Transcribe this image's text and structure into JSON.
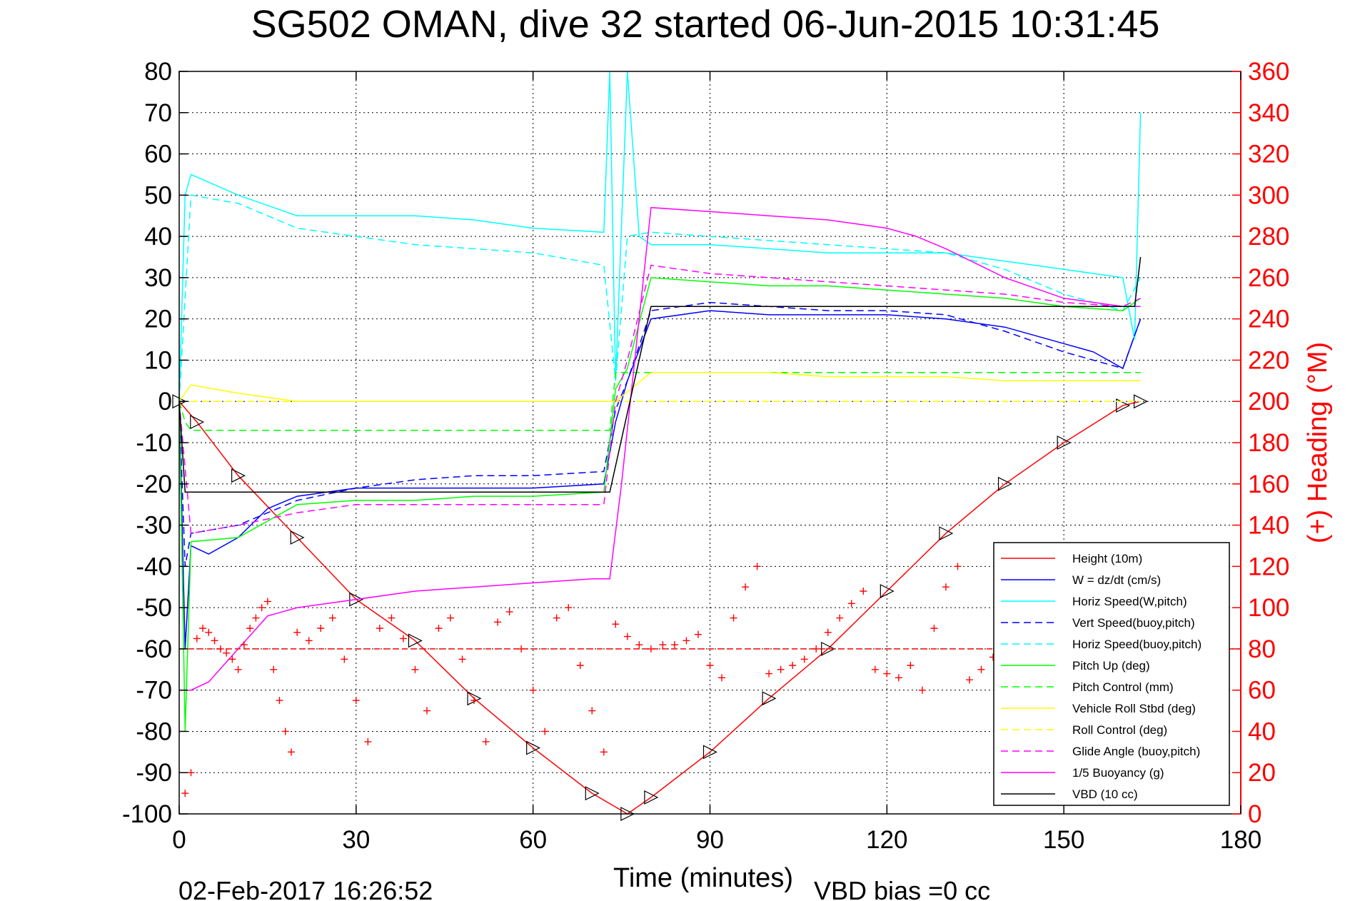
{
  "chart_data": {
    "type": "line",
    "title": "SG502 OMAN, dive 32 started 06-Jun-2015 10:31:45",
    "xlabel": "Time (minutes)",
    "ylabel": "",
    "y2label": "(+) Heading (°M)",
    "xlim": [
      0,
      180
    ],
    "ylim": [
      -100,
      80
    ],
    "y2lim": [
      0,
      360
    ],
    "grid": true,
    "legend_position": "bottom-right",
    "x_ticks": [
      "0",
      "30",
      "60",
      "90",
      "120",
      "150",
      "180"
    ],
    "y_ticks": [
      "80",
      "70",
      "60",
      "50",
      "40",
      "30",
      "20",
      "10",
      "0",
      "-10",
      "-20",
      "-30",
      "-40",
      "-50",
      "-60",
      "-70",
      "-80",
      "-90",
      "-100"
    ],
    "y2_ticks": [
      "360",
      "340",
      "320",
      "300",
      "280",
      "260",
      "240",
      "220",
      "200",
      "180",
      "160",
      "140",
      "120",
      "100",
      "80",
      "60",
      "40",
      "20",
      "0"
    ],
    "footer_date": "02-Feb-2017 16:26:52",
    "footer_vbd": "VBD bias =0 cc",
    "series": [
      {
        "name": "Height (10m)",
        "color": "#ff0000",
        "dash": "solid",
        "marker": "triangle",
        "x": [
          0,
          3,
          10,
          20,
          30,
          40,
          50,
          60,
          70,
          76,
          80,
          90,
          100,
          110,
          120,
          130,
          140,
          150,
          160,
          163
        ],
        "y": [
          0,
          -5,
          -18,
          -33,
          -48,
          -58,
          -72,
          -84,
          -95,
          -100,
          -96,
          -85,
          -72,
          -60,
          -46,
          -32,
          -20,
          -10,
          -1,
          0
        ]
      },
      {
        "name": "W = dz/dt (cm/s)",
        "color": "#0000ff",
        "dash": "solid",
        "x": [
          0,
          1,
          2,
          5,
          10,
          15,
          20,
          30,
          40,
          50,
          60,
          72,
          74,
          76,
          80,
          90,
          100,
          110,
          120,
          130,
          140,
          150,
          155,
          160,
          163
        ],
        "y": [
          0,
          -60,
          -35,
          -37,
          -33,
          -26,
          -23,
          -21,
          -21,
          -21,
          -21,
          -20,
          -5,
          5,
          20,
          22,
          21,
          21,
          21,
          20,
          18,
          14,
          12,
          8,
          20
        ]
      },
      {
        "name": "Horiz Speed(W,pitch)",
        "color": "#00ffff",
        "dash": "solid",
        "x": [
          0,
          1,
          2,
          10,
          20,
          30,
          40,
          50,
          60,
          72,
          73,
          74,
          76,
          78,
          80,
          90,
          100,
          110,
          120,
          130,
          140,
          150,
          160,
          162,
          163
        ],
        "y": [
          0,
          50,
          55,
          50,
          45,
          45,
          45,
          44,
          42,
          41,
          80,
          5,
          80,
          40,
          38,
          38,
          37,
          36,
          36,
          36,
          34,
          32,
          30,
          15,
          70
        ]
      },
      {
        "name": "Vert Speed(buoy,pitch)",
        "color": "#0000ff",
        "dash": "dashed",
        "x": [
          0,
          1,
          2,
          10,
          20,
          30,
          40,
          50,
          60,
          72,
          74,
          76,
          80,
          90,
          100,
          110,
          120,
          130,
          140,
          150,
          160,
          163
        ],
        "y": [
          0,
          -40,
          -32,
          -30,
          -24,
          -21,
          -19,
          -18,
          -18,
          -17,
          -2,
          5,
          22,
          24,
          23,
          22,
          22,
          21,
          17,
          12,
          8,
          20
        ]
      },
      {
        "name": "Horiz Speed(buoy,pitch)",
        "color": "#00ffff",
        "dash": "dashed",
        "x": [
          0,
          2,
          10,
          20,
          30,
          40,
          50,
          60,
          72,
          74,
          76,
          80,
          90,
          100,
          110,
          120,
          130,
          140,
          150,
          160,
          163
        ],
        "y": [
          0,
          50,
          48,
          42,
          40,
          38,
          37,
          36,
          33,
          5,
          40,
          41,
          40,
          39,
          38,
          37,
          36,
          32,
          26,
          22,
          30
        ]
      },
      {
        "name": "Pitch Up (deg)",
        "color": "#00ff00",
        "dash": "solid",
        "x": [
          0,
          1,
          2,
          10,
          20,
          30,
          40,
          50,
          60,
          72,
          74,
          76,
          80,
          90,
          100,
          110,
          120,
          130,
          140,
          150,
          160,
          163
        ],
        "y": [
          0,
          -80,
          -34,
          -33,
          -25,
          -24,
          -24,
          -23,
          -23,
          -22,
          3,
          8,
          30,
          29,
          28,
          28,
          27,
          26,
          25,
          23,
          22,
          25
        ]
      },
      {
        "name": "Pitch Control (mm)",
        "color": "#00ff00",
        "dash": "dashed",
        "x": [
          0,
          1,
          2,
          73,
          74,
          163
        ],
        "y": [
          0,
          -5,
          -7,
          -7,
          7,
          7
        ]
      },
      {
        "name": "Vehicle Roll Stbd (deg)",
        "color": "#ffff00",
        "dash": "solid",
        "x": [
          0,
          2,
          10,
          20,
          30,
          40,
          50,
          60,
          70,
          74,
          80,
          90,
          100,
          110,
          120,
          130,
          140,
          150,
          160,
          163
        ],
        "y": [
          0,
          4,
          2,
          0,
          0,
          0,
          0,
          0,
          0,
          0,
          7,
          7,
          7,
          6,
          6,
          6,
          5,
          5,
          5,
          5
        ]
      },
      {
        "name": "Roll Control (deg)",
        "color": "#ffff00",
        "dash": "dashed",
        "x": [
          0,
          163
        ],
        "y": [
          0,
          0
        ]
      },
      {
        "name": "Glide Angle (buoy,pitch)",
        "color": "#ff00ff",
        "dash": "dashed",
        "x": [
          0,
          2,
          10,
          20,
          30,
          40,
          50,
          60,
          72,
          74,
          76,
          80,
          90,
          100,
          110,
          120,
          130,
          140,
          150,
          160,
          163
        ],
        "y": [
          0,
          -32,
          -30,
          -27,
          -25,
          -25,
          -25,
          -25,
          -25,
          0,
          10,
          33,
          31,
          30,
          29,
          28,
          27,
          26,
          24,
          23,
          25
        ]
      },
      {
        "name": "1/5 Buoyancy (g)",
        "color": "#ff00ff",
        "dash": "solid",
        "x": [
          0,
          1,
          2,
          5,
          10,
          15,
          20,
          30,
          40,
          50,
          60,
          70,
          73,
          75,
          80,
          90,
          100,
          110,
          120,
          125,
          130,
          140,
          150,
          160,
          163
        ],
        "y": [
          -70,
          -70,
          -70,
          -68,
          -60,
          -52,
          -50,
          -48,
          -46,
          -45,
          -44,
          -43,
          -43,
          -20,
          47,
          46,
          45,
          44,
          42,
          40,
          37,
          30,
          25,
          23,
          23
        ]
      },
      {
        "name": "VBD (10 cc)",
        "color": "#000000",
        "dash": "solid",
        "x": [
          0,
          1,
          2,
          73,
          80,
          162,
          163
        ],
        "y": [
          0,
          -22,
          -22,
          -22,
          23,
          23,
          35
        ]
      }
    ],
    "heading": {
      "name": "(+) Heading (°M)",
      "color": "#ff0000",
      "marker": "plus",
      "reference": 80,
      "x": [
        1,
        2,
        3,
        4,
        5,
        6,
        7,
        8,
        9,
        10,
        11,
        12,
        13,
        14,
        15,
        16,
        17,
        18,
        19,
        20,
        22,
        24,
        26,
        28,
        30,
        32,
        34,
        36,
        38,
        40,
        42,
        44,
        46,
        48,
        50,
        52,
        54,
        56,
        58,
        60,
        62,
        64,
        66,
        68,
        70,
        72,
        74,
        76,
        78,
        80,
        82,
        84,
        86,
        88,
        90,
        92,
        94,
        96,
        98,
        100,
        102,
        104,
        106,
        108,
        110,
        112,
        114,
        116,
        118,
        120,
        122,
        124,
        126,
        128,
        130,
        132,
        134,
        136,
        138,
        140
      ],
      "y": [
        10,
        20,
        85,
        90,
        88,
        84,
        80,
        78,
        75,
        70,
        82,
        90,
        95,
        100,
        103,
        70,
        55,
        40,
        30,
        88,
        84,
        90,
        95,
        75,
        55,
        35,
        90,
        95,
        85,
        70,
        50,
        90,
        95,
        75,
        55,
        35,
        93,
        98,
        80,
        60,
        40,
        95,
        100,
        72,
        50,
        30,
        92,
        86,
        82,
        80,
        82,
        82,
        84,
        87,
        72,
        66,
        95,
        110,
        120,
        68,
        70,
        72,
        75,
        80,
        88,
        95,
        102,
        108,
        70,
        68,
        66,
        72,
        60,
        90,
        110,
        120,
        65,
        70,
        76,
        80
      ]
    }
  },
  "legend": {
    "entries": [
      {
        "label": "Height (10m)",
        "color": "#ff0000",
        "dash": "solid"
      },
      {
        "label": "W = dz/dt (cm/s)",
        "color": "#0000ff",
        "dash": "solid"
      },
      {
        "label": "Horiz Speed(W,pitch)",
        "color": "#00ffff",
        "dash": "solid"
      },
      {
        "label": "Vert Speed(buoy,pitch)",
        "color": "#0000ff",
        "dash": "dashed"
      },
      {
        "label": "Horiz Speed(buoy,pitch)",
        "color": "#00ffff",
        "dash": "dashed"
      },
      {
        "label": "Pitch Up (deg)",
        "color": "#00ff00",
        "dash": "solid"
      },
      {
        "label": "Pitch Control (mm)",
        "color": "#00ff00",
        "dash": "dashed"
      },
      {
        "label": "Vehicle Roll Stbd (deg)",
        "color": "#ffff00",
        "dash": "solid"
      },
      {
        "label": "Roll Control (deg)",
        "color": "#ffff00",
        "dash": "dashed"
      },
      {
        "label": "Glide Angle (buoy,pitch)",
        "color": "#ff00ff",
        "dash": "dashed"
      },
      {
        "label": "1/5 Buoyancy (g)",
        "color": "#ff00ff",
        "dash": "solid"
      },
      {
        "label": "VBD (10 cc)",
        "color": "#000000",
        "dash": "solid"
      }
    ]
  }
}
